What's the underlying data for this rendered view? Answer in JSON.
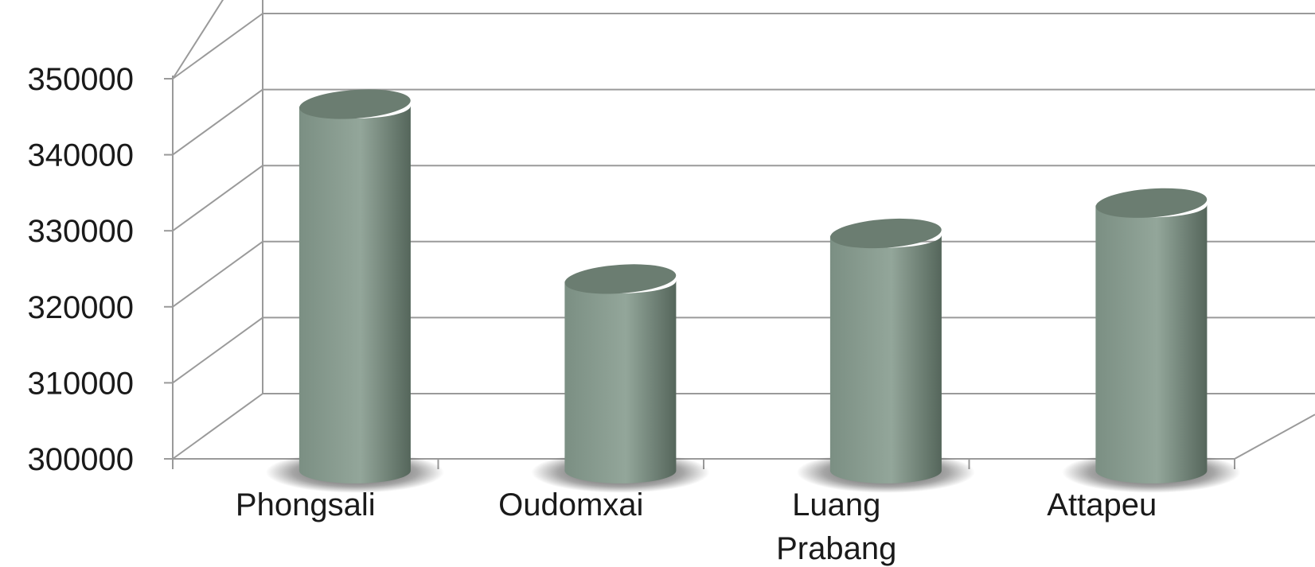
{
  "chart_data": {
    "type": "bar",
    "style": "3d-cylinder",
    "categories": [
      "Phongsali",
      "Oudomxai",
      "Luang Prabang",
      "Attapeu"
    ],
    "category_lines": [
      [
        "Phongsali"
      ],
      [
        "Oudomxai"
      ],
      [
        "Luang",
        "Prabang"
      ],
      [
        "Attapeu"
      ]
    ],
    "values": [
      348000,
      325000,
      331000,
      335000
    ],
    "ylim": [
      300000,
      350000
    ],
    "yticks": [
      "300000",
      "310000",
      "320000",
      "330000",
      "340000",
      "350000"
    ],
    "ytick_values": [
      300000,
      310000,
      320000,
      330000,
      340000,
      350000
    ],
    "title": "",
    "xlabel": "",
    "ylabel": "",
    "grid": true,
    "legend": "none",
    "colors": {
      "bar_light": "#93a69a",
      "bar_mid": "#7b8f83",
      "bar_dark": "#55665b",
      "top": "#6b7d71",
      "grid": "#9a9a9a",
      "text": "#1a1a1a"
    }
  }
}
